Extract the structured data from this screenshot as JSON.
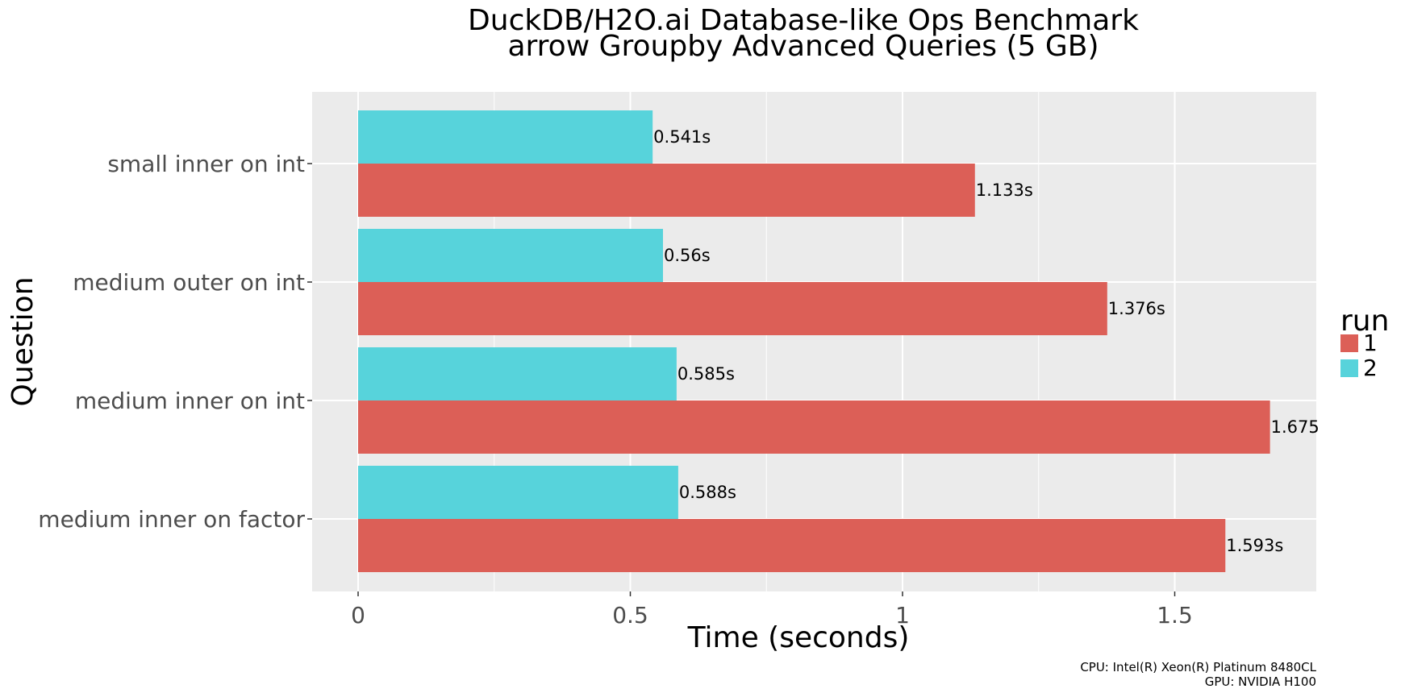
{
  "chart_data": {
    "type": "bar",
    "orientation": "horizontal",
    "title": "DuckDB/H2O.ai Database-like Ops Benchmark",
    "subtitle": "arrow Groupby Advanced Queries (5 GB)",
    "xlabel": "Time (seconds)",
    "ylabel": "Question",
    "xlim": [
      0,
      1.75
    ],
    "x_ticks": [
      0,
      0.5,
      1,
      1.5
    ],
    "x_tick_labels": [
      "0",
      "0.5",
      "1",
      "1.5"
    ],
    "grid": true,
    "categories": [
      "small inner on int",
      "medium outer on int",
      "medium inner on int",
      "medium inner on factor"
    ],
    "series": [
      {
        "name": "1",
        "color": "#dc5f57",
        "values": [
          1.133,
          1.376,
          1.675,
          1.593
        ],
        "labels": [
          "1.133s",
          "1.376s",
          "1.675",
          "1.593s"
        ]
      },
      {
        "name": "2",
        "color": "#57d3db",
        "values": [
          0.541,
          0.56,
          0.585,
          0.588
        ],
        "labels": [
          "0.541s",
          "0.56s",
          "0.585s",
          "0.588s"
        ]
      }
    ],
    "legend": {
      "title": "run",
      "placement": "right"
    },
    "caption": [
      "CPU: Intel(R) Xeon(R) Platinum 8480CL",
      "GPU: NVIDIA H100"
    ]
  }
}
